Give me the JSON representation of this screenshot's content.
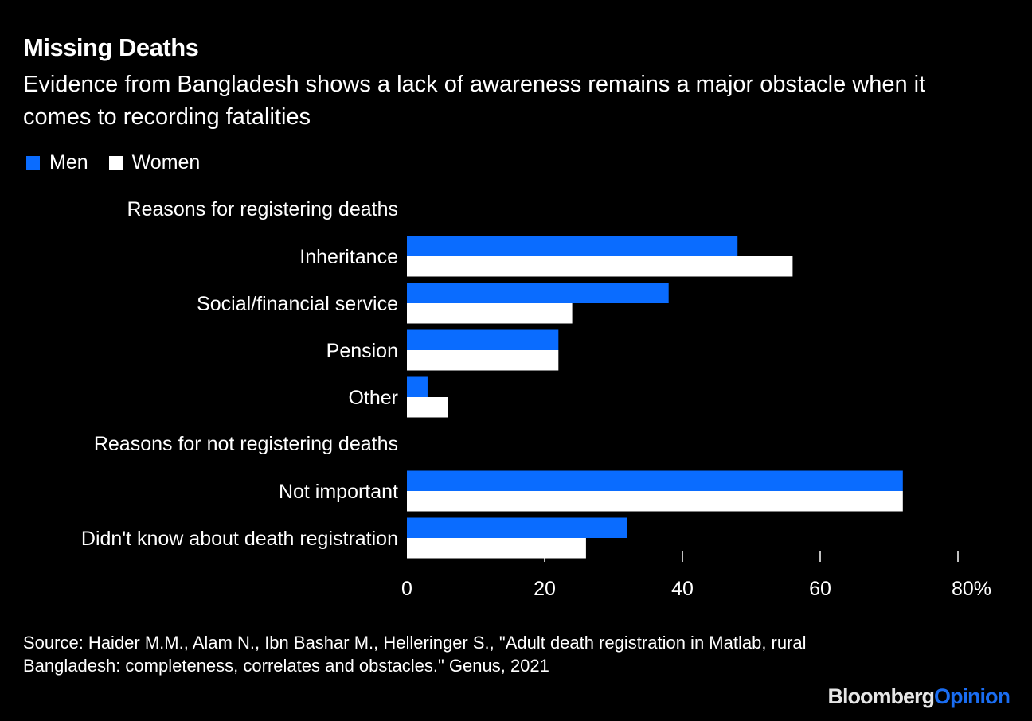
{
  "header": {
    "title": "Missing Deaths",
    "subtitle": "Evidence from Bangladesh shows a lack of awareness remains a major obstacle when it comes to recording fatalities"
  },
  "legend": [
    {
      "name": "Men",
      "color": "#0a6cff"
    },
    {
      "name": "Women",
      "color": "#ffffff"
    }
  ],
  "footer": {
    "source": "Source: Haider M.M., Alam N., Ibn Bashar M., Helleringer S., \"Adult death registration in Matlab, rural Bangladesh: completeness, correlates and obstacles.\" Genus, 2021",
    "logo_part1": "Bloomberg",
    "logo_part2": "Opinion"
  },
  "chart_data": {
    "type": "bar",
    "orientation": "horizontal",
    "title": "Missing Deaths",
    "xlabel": "",
    "ylabel": "",
    "xlim": [
      0,
      80
    ],
    "x_ticks": [
      "0",
      "20",
      "40",
      "60",
      "80%"
    ],
    "x_tick_values": [
      0,
      20,
      40,
      60,
      80
    ],
    "grid": false,
    "legend_position": "top-left",
    "groups": [
      {
        "header": "Reasons for registering deaths",
        "categories": [
          "Inheritance",
          "Social/financial service",
          "Pension",
          "Other"
        ]
      },
      {
        "header": "Reasons for not registering deaths",
        "categories": [
          "Not important",
          "Didn't know about death registration"
        ]
      }
    ],
    "categories": [
      "Inheritance",
      "Social/financial service",
      "Pension",
      "Other",
      "Not important",
      "Didn't know about death registration"
    ],
    "series": [
      {
        "name": "Men",
        "color": "#0a6cff",
        "values": [
          48,
          38,
          22,
          3,
          72,
          32
        ]
      },
      {
        "name": "Women",
        "color": "#ffffff",
        "values": [
          56,
          24,
          22,
          6,
          72,
          26
        ]
      }
    ]
  }
}
